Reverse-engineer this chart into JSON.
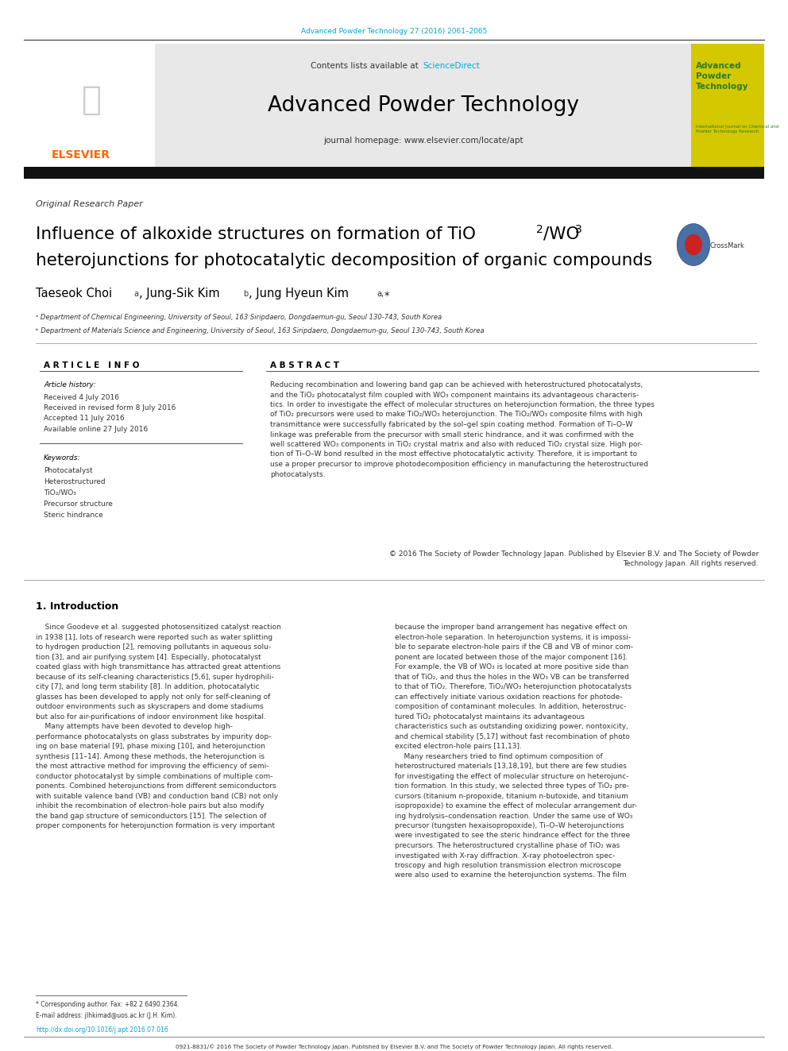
{
  "page_width": 9.92,
  "page_height": 13.23,
  "bg_color": "#ffffff",
  "top_journal_ref": "Advanced Powder Technology 27 (2016) 2061–2065",
  "top_journal_ref_color": "#00aacc",
  "header_bg": "#e8e8e8",
  "header_sciencedirect": "ScienceDirect",
  "header_sciencedirect_color": "#00aacc",
  "journal_title": "Advanced Powder Technology",
  "journal_homepage": "journal homepage: www.elsevier.com/locate/apt",
  "sidebar_bg": "#d4c800",
  "sidebar_text": "Advanced\nPowder\nTechnology",
  "sidebar_text_color": "#2a7a2a",
  "section_label": "Original Research Paper",
  "paper_title_line2": "heterojunctions for photocatalytic decomposition of organic compounds",
  "affil_a": "ᵃ Department of Chemical Engineering, University of Seoul, 163 Siripdaero, Dongdaemun-gu, Seoul 130-743, South Korea",
  "affil_b": "ᵇ Department of Materials Science and Engineering, University of Seoul, 163 Siripdaero, Dongdaemun-gu, Seoul 130-743, South Korea",
  "article_info_header": "A R T I C L E   I N F O",
  "abstract_header": "A B S T R A C T",
  "article_history_label": "Article history:",
  "article_history": "Received 4 July 2016\nReceived in revised form 8 July 2016\nAccepted 11 July 2016\nAvailable online 27 July 2016",
  "keywords_label": "Keywords:",
  "keywords": "Photocatalyst\nHeterostructured\nTiO₂/WO₃\nPrecursor structure\nSteric hindrance",
  "abstract_copyright": "© 2016 The Society of Powder Technology Japan. Published by Elsevier B.V. and The Society of Powder\nTechnology Japan. All rights reserved.",
  "intro_header": "1. Introduction",
  "footer_doi": "http://dx.doi.org/10.1016/j.apt.2016.07.016",
  "footer_text": "0921-8831/© 2016 The Society of Powder Technology Japan. Published by Elsevier B.V. and The Society of Powder Technology Japan. All rights reserved.",
  "elsevier_color": "#ff6600",
  "black": "#000000",
  "dark_gray": "#333333",
  "medium_gray": "#555555"
}
